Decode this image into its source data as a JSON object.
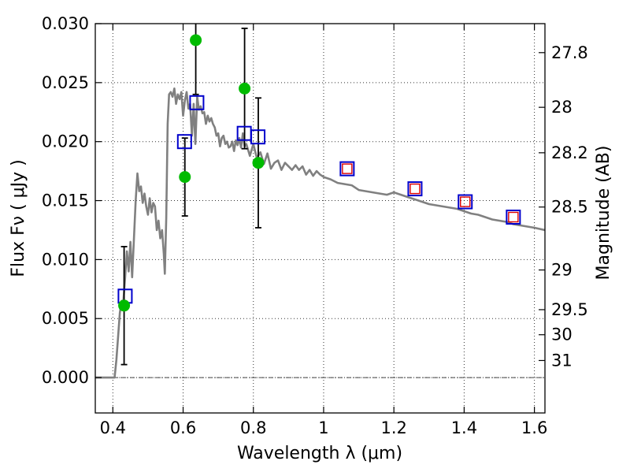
{
  "chart_data": {
    "type": "scatter",
    "xlabel": "Wavelength  λ (μm)",
    "ylabel": "Flux  Fν  ( μJy )",
    "y2label": "Magnitude (AB)",
    "xlim": [
      0.35,
      1.63
    ],
    "ylim": [
      -0.003,
      0.03
    ],
    "grid": true,
    "x_ticks": [
      {
        "value": 0.4,
        "label": "0.4"
      },
      {
        "value": 0.6,
        "label": "0.6"
      },
      {
        "value": 0.8,
        "label": "0.8"
      },
      {
        "value": 1.0,
        "label": "1"
      },
      {
        "value": 1.2,
        "label": "1.2"
      },
      {
        "value": 1.4,
        "label": "1.4"
      },
      {
        "value": 1.6,
        "label": "1.6"
      }
    ],
    "y_ticks": [
      {
        "value": 0.0,
        "label": "0.000"
      },
      {
        "value": 0.005,
        "label": "0.005"
      },
      {
        "value": 0.01,
        "label": "0.010"
      },
      {
        "value": 0.015,
        "label": "0.015"
      },
      {
        "value": 0.02,
        "label": "0.020"
      },
      {
        "value": 0.025,
        "label": "0.025"
      },
      {
        "value": 0.03,
        "label": "0.030"
      }
    ],
    "y2_ticks": [
      {
        "value": 27.8,
        "label": "27.8"
      },
      {
        "value": 28.0,
        "label": "28"
      },
      {
        "value": 28.2,
        "label": "28.2"
      },
      {
        "value": 28.5,
        "label": "28.5"
      },
      {
        "value": 29.0,
        "label": "29"
      },
      {
        "value": 29.5,
        "label": "29.5"
      },
      {
        "value": 30.0,
        "label": "30"
      },
      {
        "value": 31.0,
        "label": "31"
      }
    ],
    "zero_line": 0.0,
    "colors": {
      "model": "#808080",
      "observed": "#00bb00",
      "model_band": "#0000cc",
      "model_band_inner": "#dd0000",
      "errorbar": "#000000",
      "grid": "#000000",
      "zeroline": "#444444"
    },
    "model_spectrum": {
      "x": [
        0.35,
        0.405,
        0.41,
        0.415,
        0.42,
        0.425,
        0.43,
        0.435,
        0.44,
        0.445,
        0.45,
        0.455,
        0.46,
        0.465,
        0.47,
        0.475,
        0.48,
        0.485,
        0.49,
        0.495,
        0.5,
        0.505,
        0.51,
        0.515,
        0.52,
        0.525,
        0.53,
        0.535,
        0.54,
        0.545,
        0.548,
        0.552,
        0.556,
        0.56,
        0.565,
        0.57,
        0.575,
        0.58,
        0.585,
        0.59,
        0.595,
        0.6,
        0.605,
        0.61,
        0.615,
        0.62,
        0.625,
        0.63,
        0.635,
        0.64,
        0.645,
        0.65,
        0.655,
        0.66,
        0.665,
        0.67,
        0.675,
        0.68,
        0.685,
        0.69,
        0.695,
        0.7,
        0.705,
        0.71,
        0.715,
        0.72,
        0.725,
        0.73,
        0.735,
        0.74,
        0.745,
        0.75,
        0.755,
        0.76,
        0.765,
        0.77,
        0.775,
        0.78,
        0.79,
        0.8,
        0.81,
        0.82,
        0.83,
        0.84,
        0.85,
        0.86,
        0.87,
        0.88,
        0.89,
        0.9,
        0.91,
        0.92,
        0.93,
        0.94,
        0.95,
        0.96,
        0.97,
        0.98,
        0.99,
        1.0,
        1.02,
        1.04,
        1.06,
        1.08,
        1.1,
        1.12,
        1.14,
        1.16,
        1.18,
        1.2,
        1.22,
        1.24,
        1.26,
        1.28,
        1.3,
        1.32,
        1.34,
        1.36,
        1.38,
        1.4,
        1.42,
        1.44,
        1.46,
        1.48,
        1.5,
        1.52,
        1.54,
        1.56,
        1.58,
        1.6,
        1.63
      ],
      "y": [
        0.0,
        0.0,
        0.0015,
        0.0035,
        0.0055,
        0.0065,
        0.0065,
        0.0085,
        0.0107,
        0.009,
        0.0115,
        0.0085,
        0.0118,
        0.015,
        0.0173,
        0.0158,
        0.0162,
        0.0148,
        0.0156,
        0.0145,
        0.0138,
        0.0152,
        0.014,
        0.0148,
        0.0145,
        0.0125,
        0.0133,
        0.0118,
        0.0125,
        0.0105,
        0.0088,
        0.0135,
        0.0215,
        0.024,
        0.0242,
        0.0238,
        0.0245,
        0.0232,
        0.024,
        0.0236,
        0.0242,
        0.0222,
        0.0235,
        0.0242,
        0.0228,
        0.0232,
        0.0205,
        0.0232,
        0.0198,
        0.0238,
        0.0227,
        0.023,
        0.0224,
        0.0225,
        0.0215,
        0.0222,
        0.0217,
        0.022,
        0.0215,
        0.0212,
        0.0205,
        0.0207,
        0.0196,
        0.0203,
        0.0205,
        0.0198,
        0.02,
        0.0195,
        0.0196,
        0.02,
        0.0192,
        0.0201,
        0.0197,
        0.0203,
        0.0195,
        0.0207,
        0.0196,
        0.0198,
        0.0188,
        0.0198,
        0.0186,
        0.0191,
        0.0181,
        0.019,
        0.0177,
        0.0182,
        0.0184,
        0.0176,
        0.0182,
        0.0179,
        0.0176,
        0.018,
        0.0176,
        0.0179,
        0.0172,
        0.0176,
        0.0171,
        0.0175,
        0.0172,
        0.017,
        0.0168,
        0.0165,
        0.0164,
        0.0163,
        0.0159,
        0.0158,
        0.0157,
        0.0156,
        0.0155,
        0.0157,
        0.0155,
        0.0153,
        0.0151,
        0.0149,
        0.0147,
        0.0146,
        0.0145,
        0.0144,
        0.0143,
        0.0141,
        0.0139,
        0.0138,
        0.0136,
        0.0134,
        0.0133,
        0.0132,
        0.013,
        0.0129,
        0.0128,
        0.0127,
        0.0125
      ]
    },
    "observed": [
      {
        "x": 0.432,
        "y": 0.0061,
        "err": 0.005
      },
      {
        "x": 0.605,
        "y": 0.017,
        "err": 0.0033
      },
      {
        "x": 0.636,
        "y": 0.0286,
        "err": 0.0046
      },
      {
        "x": 0.775,
        "y": 0.0245,
        "err": 0.0051
      },
      {
        "x": 0.814,
        "y": 0.0182,
        "err": 0.0055
      }
    ],
    "model_photometry": [
      {
        "x": 0.435,
        "y": 0.0069,
        "inner": false
      },
      {
        "x": 0.604,
        "y": 0.02,
        "inner": false
      },
      {
        "x": 0.639,
        "y": 0.0233,
        "inner": false
      },
      {
        "x": 0.774,
        "y": 0.0207,
        "inner": false
      },
      {
        "x": 0.813,
        "y": 0.0204,
        "inner": false
      },
      {
        "x": 1.067,
        "y": 0.0177,
        "inner": true
      },
      {
        "x": 1.26,
        "y": 0.016,
        "inner": true
      },
      {
        "x": 1.403,
        "y": 0.0149,
        "inner": true
      },
      {
        "x": 1.54,
        "y": 0.0136,
        "inner": true
      }
    ]
  }
}
